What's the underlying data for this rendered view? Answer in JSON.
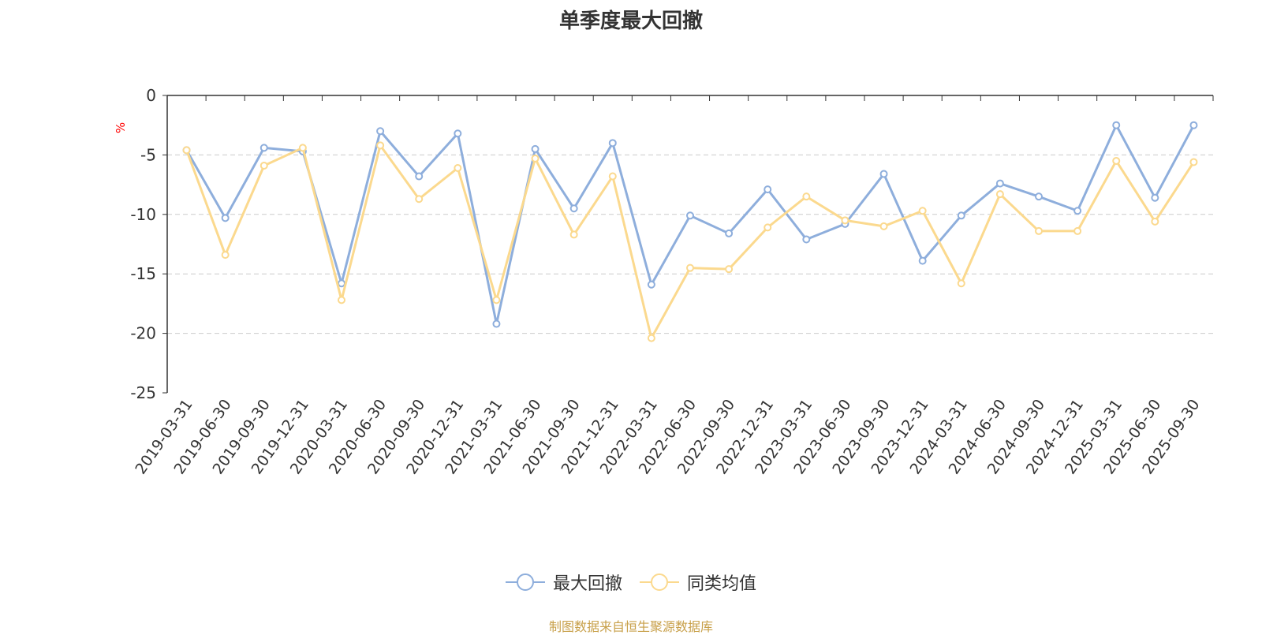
{
  "chart_data": {
    "type": "line",
    "title": "单季度最大回撤",
    "ylabel": "%",
    "ylim": [
      -25,
      0
    ],
    "yticks": [
      0,
      -5,
      -10,
      -15,
      -20,
      -25
    ],
    "grid": true,
    "legend_position": "bottom",
    "categories": [
      "2019-03-31",
      "2019-06-30",
      "2019-09-30",
      "2019-12-31",
      "2020-03-31",
      "2020-06-30",
      "2020-09-30",
      "2020-12-31",
      "2021-03-31",
      "2021-06-30",
      "2021-09-30",
      "2021-12-31",
      "2022-03-31",
      "2022-06-30",
      "2022-09-30",
      "2022-12-31",
      "2023-03-31",
      "2023-06-30",
      "2023-09-30",
      "2023-12-31",
      "2024-03-31",
      "2024-06-30",
      "2024-09-30",
      "2024-12-31",
      "2025-03-31",
      "2025-06-30",
      "2025-09-30"
    ],
    "series": [
      {
        "name": "最大回撤",
        "color": "#8eaedc",
        "values": [
          -4.6,
          -10.3,
          -4.4,
          -4.7,
          -15.8,
          -3.0,
          -6.8,
          -3.2,
          -19.2,
          -4.5,
          -9.5,
          -4.0,
          -15.9,
          -10.1,
          -11.6,
          -7.9,
          -12.1,
          -10.8,
          -6.6,
          -13.9,
          -10.1,
          -7.4,
          -8.5,
          -9.7,
          -2.5,
          -8.6,
          -2.5
        ]
      },
      {
        "name": "同类均值",
        "color": "#fbd98e",
        "values": [
          -4.6,
          -13.4,
          -5.9,
          -4.4,
          -17.2,
          -4.2,
          -8.7,
          -6.1,
          -17.2,
          -5.3,
          -11.7,
          -6.8,
          -20.4,
          -14.5,
          -14.6,
          -11.1,
          -8.5,
          -10.5,
          -11.0,
          -9.7,
          -15.8,
          -8.3,
          -11.4,
          -11.4,
          -5.5,
          -10.6,
          -5.6
        ]
      }
    ]
  },
  "source_text": "制图数据来自恒生聚源数据库",
  "colors": {
    "axis": "#333333",
    "grid": "#cccccc",
    "ylabel": "#ff0000",
    "source": "#c8a04a"
  }
}
